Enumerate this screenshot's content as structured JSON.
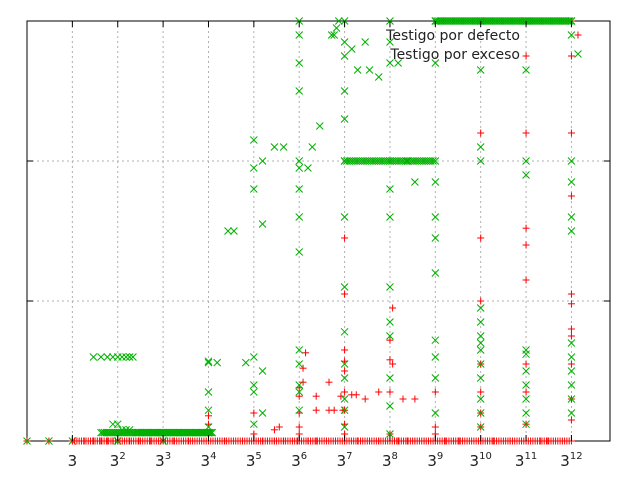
{
  "chart_data": {
    "type": "scatter",
    "title": "",
    "xlabel": "",
    "ylabel": "",
    "x_scale": "log3",
    "xlim": [
      1,
      300000
    ],
    "ylim": [
      0,
      3
    ],
    "grid": true,
    "legend_position": "top-right",
    "x_ticks": [
      {
        "base": "3",
        "exp": ""
      },
      {
        "base": "3",
        "exp": "2"
      },
      {
        "base": "3",
        "exp": "3"
      },
      {
        "base": "3",
        "exp": "4"
      },
      {
        "base": "3",
        "exp": "5"
      },
      {
        "base": "3",
        "exp": "6"
      },
      {
        "base": "3",
        "exp": "7"
      },
      {
        "base": "3",
        "exp": "8"
      },
      {
        "base": "3",
        "exp": "9"
      },
      {
        "base": "3",
        "exp": "10"
      },
      {
        "base": "3",
        "exp": "11"
      },
      {
        "base": "3",
        "exp": "12"
      }
    ],
    "series": [
      {
        "name": "Testigo por defecto",
        "color": "#ff0000",
        "marker": "plus",
        "points": [
          [
            1,
            0
          ],
          [
            1.7,
            0
          ],
          [
            3,
            0
          ],
          [
            4,
            0
          ],
          [
            5,
            0
          ],
          [
            6,
            0
          ],
          [
            7,
            0
          ],
          [
            8,
            0
          ],
          [
            9,
            0
          ],
          [
            12,
            0
          ],
          [
            15,
            0
          ],
          [
            20,
            0
          ],
          [
            27,
            0
          ],
          [
            35,
            0
          ],
          [
            50,
            0
          ],
          [
            81,
            0
          ],
          [
            120,
            0
          ],
          [
            243,
            0
          ],
          [
            300,
            0
          ],
          [
            400,
            0
          ],
          [
            500,
            0
          ],
          [
            700,
            0
          ],
          [
            729,
            0
          ],
          [
            900,
            0
          ],
          [
            1100,
            0
          ],
          [
            2187,
            0
          ],
          [
            3000,
            0
          ],
          [
            4000,
            0
          ],
          [
            5000,
            0
          ],
          [
            6561,
            0
          ],
          [
            8000,
            0
          ],
          [
            10000,
            0
          ],
          [
            12000,
            0
          ],
          [
            15000,
            0
          ],
          [
            19683,
            0
          ],
          [
            25000,
            0
          ],
          [
            35000,
            0
          ],
          [
            59049,
            0
          ],
          [
            80000,
            0
          ],
          [
            120000,
            0
          ],
          [
            177147,
            0
          ],
          [
            250000,
            0
          ],
          [
            300000,
            0
          ],
          [
            81,
            0.12
          ],
          [
            81,
            0.18
          ],
          [
            243,
            0.05
          ],
          [
            243,
            0.2
          ],
          [
            400,
            0.08
          ],
          [
            450,
            0.1
          ],
          [
            729,
            0.05
          ],
          [
            729,
            0.1
          ],
          [
            729,
            0.2
          ],
          [
            729,
            0.32
          ],
          [
            729,
            0.38
          ],
          [
            800,
            0.42
          ],
          [
            800,
            0.52
          ],
          [
            850,
            0.63
          ],
          [
            1100,
            0.22
          ],
          [
            1100,
            0.32
          ],
          [
            1500,
            0.42
          ],
          [
            2000,
            0.32
          ],
          [
            2187,
            0.05
          ],
          [
            2187,
            0.12
          ],
          [
            2187,
            0.22
          ],
          [
            2187,
            0.35
          ],
          [
            2187,
            0.5
          ],
          [
            2187,
            0.57
          ],
          [
            2187,
            0.65
          ],
          [
            2187,
            1.05
          ],
          [
            2187,
            1.45
          ],
          [
            3600,
            0.3
          ],
          [
            5000,
            0.35
          ],
          [
            6561,
            0.05
          ],
          [
            6561,
            0.35
          ],
          [
            6561,
            0.58
          ],
          [
            6561,
            0.72
          ],
          [
            7000,
            0.55
          ],
          [
            7000,
            0.95
          ],
          [
            9000,
            0.3
          ],
          [
            12000,
            0.3
          ],
          [
            19683,
            0.05
          ],
          [
            19683,
            0.1
          ],
          [
            19683,
            0.35
          ],
          [
            59049,
            0.1
          ],
          [
            59049,
            0.2
          ],
          [
            59049,
            0.35
          ],
          [
            59049,
            0.55
          ],
          [
            59049,
            1.0
          ],
          [
            59049,
            1.45
          ],
          [
            59049,
            2.2
          ],
          [
            177147,
            0.12
          ],
          [
            177147,
            0.35
          ],
          [
            177147,
            0.55
          ],
          [
            177147,
            1.15
          ],
          [
            177147,
            1.4
          ],
          [
            177147,
            1.52
          ],
          [
            177147,
            2.2
          ],
          [
            177147,
            2.75
          ],
          [
            177147,
            3.0
          ],
          [
            531441,
            0.0
          ],
          [
            531441,
            0.15
          ],
          [
            531441,
            0.3
          ],
          [
            531441,
            0.55
          ],
          [
            531441,
            0.75
          ],
          [
            531441,
            0.8
          ],
          [
            531441,
            0.98
          ],
          [
            531441,
            1.05
          ],
          [
            531441,
            1.75
          ],
          [
            531441,
            2.2
          ],
          [
            531441,
            2.75
          ],
          [
            531441,
            3.0
          ],
          [
            1500,
            0.22
          ],
          [
            1700,
            0.22
          ],
          [
            2100,
            0.22
          ],
          [
            2600,
            0.33
          ],
          [
            2900,
            0.33
          ]
        ]
      },
      {
        "name": "Testigo por exceso",
        "color": "#00b000",
        "marker": "cross",
        "points": [
          [
            1,
            0
          ],
          [
            1.7,
            0
          ],
          [
            3,
            0
          ],
          [
            9,
            0
          ],
          [
            27,
            0
          ],
          [
            5,
            0.6
          ],
          [
            6,
            0.6
          ],
          [
            7,
            0.6
          ],
          [
            8,
            0.6
          ],
          [
            9,
            0.6
          ],
          [
            10,
            0.6
          ],
          [
            11,
            0.6
          ],
          [
            12,
            0.6
          ],
          [
            13,
            0.6
          ],
          [
            8,
            0.12
          ],
          [
            9,
            0.12
          ],
          [
            10,
            0.08
          ],
          [
            11,
            0.08
          ],
          [
            12,
            0.08
          ],
          [
            15,
            0.06
          ],
          [
            18,
            0.06
          ],
          [
            22,
            0.06
          ],
          [
            27,
            0.06
          ],
          [
            35,
            0.06
          ],
          [
            45,
            0.06
          ],
          [
            60,
            0.06
          ],
          [
            81,
            0.06
          ],
          [
            81,
            0.22
          ],
          [
            81,
            0.56
          ],
          [
            81,
            0.57
          ],
          [
            81,
            0.35
          ],
          [
            81,
            0.1
          ],
          [
            100,
            0.56
          ],
          [
            130,
            1.5
          ],
          [
            150,
            1.5
          ],
          [
            200,
            0.56
          ],
          [
            243,
            0.35
          ],
          [
            243,
            0.12
          ],
          [
            243,
            0.4
          ],
          [
            243,
            0.6
          ],
          [
            300,
            0.2
          ],
          [
            300,
            0.5
          ],
          [
            243,
            1.8
          ],
          [
            243,
            1.95
          ],
          [
            243,
            2.15
          ],
          [
            300,
            1.55
          ],
          [
            300,
            2.0
          ],
          [
            400,
            2.1
          ],
          [
            500,
            2.1
          ],
          [
            729,
            1.35
          ],
          [
            729,
            2.5
          ],
          [
            729,
            2.7
          ],
          [
            729,
            0.22
          ],
          [
            729,
            0.35
          ],
          [
            729,
            0.4
          ],
          [
            729,
            0.55
          ],
          [
            729,
            0.65
          ],
          [
            729,
            1.6
          ],
          [
            729,
            1.8
          ],
          [
            729,
            1.95
          ],
          [
            729,
            2.0
          ],
          [
            729,
            2.9
          ],
          [
            729,
            3.0
          ],
          [
            900,
            1.95
          ],
          [
            1000,
            2.1
          ],
          [
            1200,
            2.25
          ],
          [
            1600,
            2.9
          ],
          [
            1700,
            2.9
          ],
          [
            1800,
            2.95
          ],
          [
            1900,
            3.0
          ],
          [
            2187,
            0.1
          ],
          [
            2187,
            0.22
          ],
          [
            2187,
            0.3
          ],
          [
            2187,
            0.45
          ],
          [
            2187,
            0.55
          ],
          [
            2187,
            0.78
          ],
          [
            2187,
            1.1
          ],
          [
            2187,
            1.6
          ],
          [
            2187,
            2.0
          ],
          [
            2187,
            2.3
          ],
          [
            2187,
            2.5
          ],
          [
            2187,
            2.75
          ],
          [
            2187,
            2.85
          ],
          [
            2187,
            3.0
          ],
          [
            2600,
            2.8
          ],
          [
            3000,
            2.65
          ],
          [
            3600,
            2.85
          ],
          [
            4000,
            2.65
          ],
          [
            5000,
            2.6
          ],
          [
            6561,
            0.05
          ],
          [
            6561,
            0.25
          ],
          [
            6561,
            0.45
          ],
          [
            6561,
            0.75
          ],
          [
            6561,
            0.85
          ],
          [
            6561,
            1.1
          ],
          [
            6561,
            1.6
          ],
          [
            6561,
            1.8
          ],
          [
            6561,
            2.0
          ],
          [
            6561,
            2.7
          ],
          [
            6561,
            2.85
          ],
          [
            6561,
            3.0
          ],
          [
            8000,
            2.7
          ],
          [
            10000,
            2.0
          ],
          [
            12000,
            1.85
          ],
          [
            19683,
            0.2
          ],
          [
            19683,
            0.45
          ],
          [
            19683,
            0.6
          ],
          [
            19683,
            0.72
          ],
          [
            19683,
            1.2
          ],
          [
            19683,
            1.45
          ],
          [
            19683,
            1.6
          ],
          [
            19683,
            1.85
          ],
          [
            19683,
            2.0
          ],
          [
            19683,
            2.7
          ],
          [
            19683,
            3.0
          ],
          [
            59049,
            0.1
          ],
          [
            59049,
            0.2
          ],
          [
            59049,
            0.3
          ],
          [
            59049,
            0.45
          ],
          [
            59049,
            0.55
          ],
          [
            59049,
            0.65
          ],
          [
            59049,
            0.7
          ],
          [
            59049,
            0.75
          ],
          [
            59049,
            0.85
          ],
          [
            59049,
            0.95
          ],
          [
            59049,
            2.0
          ],
          [
            59049,
            2.1
          ],
          [
            59049,
            2.65
          ],
          [
            59049,
            3.0
          ],
          [
            177147,
            0.12
          ],
          [
            177147,
            0.2
          ],
          [
            177147,
            0.3
          ],
          [
            177147,
            0.4
          ],
          [
            177147,
            0.5
          ],
          [
            177147,
            0.62
          ],
          [
            177147,
            0.65
          ],
          [
            177147,
            1.9
          ],
          [
            177147,
            2.0
          ],
          [
            177147,
            2.65
          ],
          [
            177147,
            3.0
          ],
          [
            531441,
            0.2
          ],
          [
            531441,
            0.3
          ],
          [
            531441,
            0.4
          ],
          [
            531441,
            0.5
          ],
          [
            531441,
            0.6
          ],
          [
            531441,
            0.7
          ],
          [
            531441,
            1.5
          ],
          [
            531441,
            1.6
          ],
          [
            531441,
            1.85
          ],
          [
            531441,
            2.0
          ],
          [
            531441,
            2.9
          ],
          [
            531441,
            3.0
          ]
        ]
      }
    ]
  }
}
